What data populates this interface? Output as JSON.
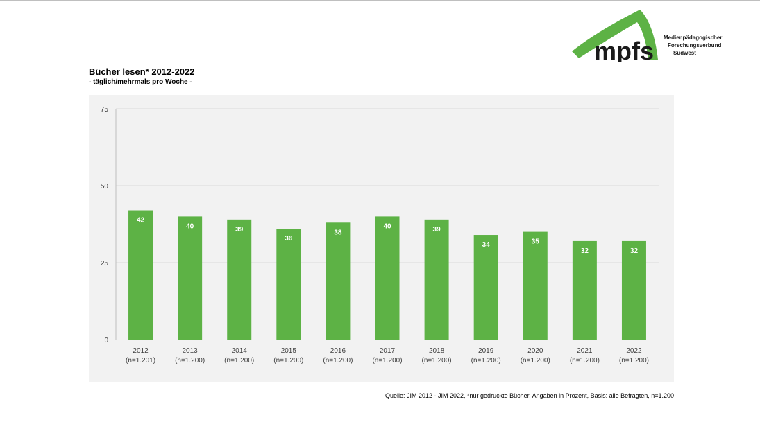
{
  "logo": {
    "text": "mpfs",
    "lines": [
      "Medienpädagogischer",
      "Forschungsverbund",
      "Südwest"
    ]
  },
  "colors": {
    "bar": "#5db245",
    "logo_green": "#5db245",
    "chart_bg": "#f2f2f2"
  },
  "chart_data": {
    "type": "bar",
    "title": "Bücher lesen* 2012-2022",
    "subtitle": "- täglich/mehrmals pro Woche -",
    "categories": [
      "2012",
      "2013",
      "2014",
      "2015",
      "2016",
      "2017",
      "2018",
      "2019",
      "2020",
      "2021",
      "2022"
    ],
    "category_sublabels": [
      "(n=1.201)",
      "(n=1.200)",
      "(n=1.200)",
      "(n=1.200)",
      "(n=1.200)",
      "(n=1.200)",
      "(n=1.200)",
      "(n=1.200)",
      "(n=1.200)",
      "(n=1.200)",
      "(n=1.200)"
    ],
    "values": [
      42,
      40,
      39,
      36,
      38,
      40,
      39,
      34,
      35,
      32,
      32
    ],
    "ylim": [
      0,
      75
    ],
    "yticks": [
      0,
      25,
      50,
      75
    ],
    "grid": true,
    "data_labels": true
  },
  "source": "Quelle: JIM 2012 - JIM 2022, *nur gedruckte Bücher, Angaben in Prozent, Basis: alle Befragten, n=1.200"
}
